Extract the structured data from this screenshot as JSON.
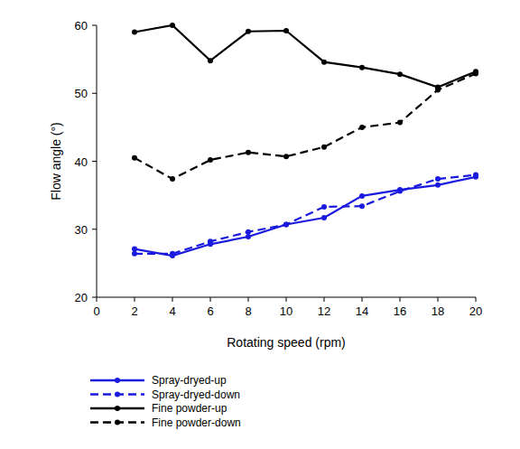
{
  "chart_data": {
    "type": "line",
    "x_label": "Rotating speed (rpm)",
    "y_label": "Flow  angle (°)",
    "x": [
      2,
      4,
      6,
      8,
      10,
      12,
      14,
      16,
      18,
      20
    ],
    "series": [
      {
        "name": "Spray-dryed-up",
        "color": "#1a1adf",
        "line_style": "solid",
        "marker": "circle",
        "values": [
          27.1,
          26.1,
          27.8,
          28.9,
          30.7,
          31.7,
          34.9,
          35.8,
          36.5,
          37.7
        ]
      },
      {
        "name": "Spray-dryed-down",
        "color": "#1a1adf",
        "line_style": "dashed",
        "marker": "circle",
        "values": [
          26.4,
          26.4,
          28.2,
          29.6,
          30.7,
          33.3,
          33.4,
          35.6,
          37.4,
          38.0
        ]
      },
      {
        "name": "Fine powder-up",
        "color": "#000000",
        "line_style": "solid",
        "marker": "circle",
        "values": [
          59.0,
          60.0,
          54.8,
          59.1,
          59.2,
          54.6,
          53.8,
          52.8,
          50.9,
          53.2
        ]
      },
      {
        "name": "Fine powder-down",
        "color": "#000000",
        "line_style": "dashed",
        "marker": "circle",
        "values": [
          40.5,
          37.4,
          40.2,
          41.3,
          40.7,
          42.1,
          45.0,
          45.7,
          50.5,
          52.9
        ]
      }
    ],
    "xlim": [
      0,
      20
    ],
    "xticks": [
      0,
      2,
      4,
      6,
      8,
      10,
      12,
      14,
      16,
      18,
      20
    ],
    "ylim": [
      20,
      60
    ],
    "yticks": [
      20,
      30,
      40,
      50,
      60
    ],
    "grid": false,
    "legend": "bottom"
  }
}
